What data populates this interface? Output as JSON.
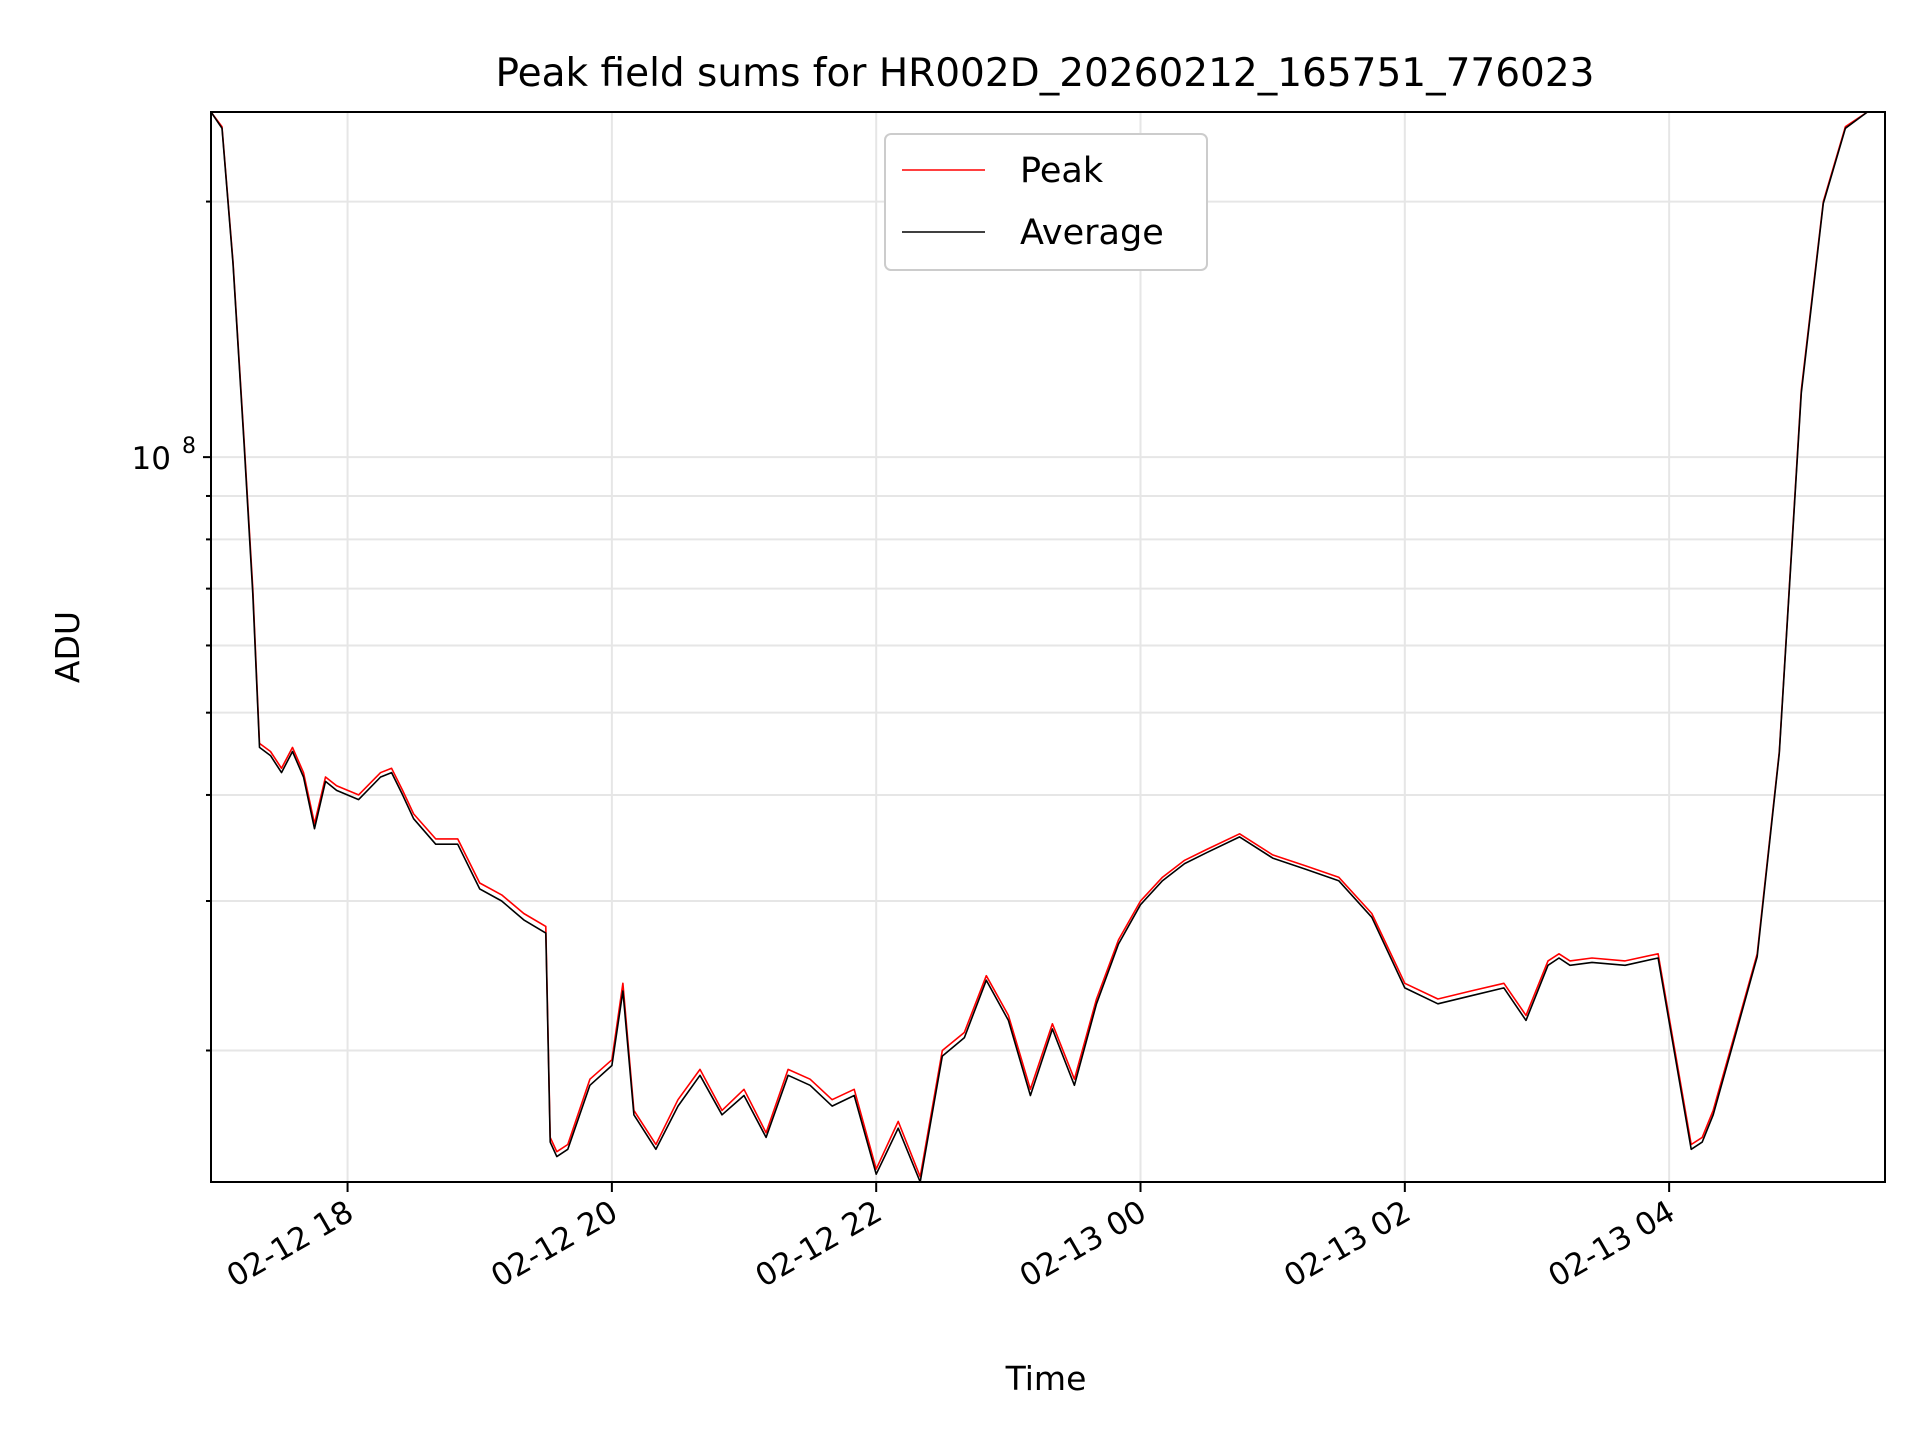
{
  "chart_data": {
    "type": "line",
    "title": "Peak field sums for HR002D_20260212_165751_776023",
    "xlabel": "Time",
    "ylabel": "ADU",
    "yscale": "log",
    "xlim": [
      "2026-02-12 16:58",
      "2026-02-13 05:38"
    ],
    "ylim": [
      14000000,
      255000000
    ],
    "x_ticks": [
      "02-12 18",
      "02-12 20",
      "02-12 22",
      "02-13 00",
      "02-13 02",
      "02-13 04"
    ],
    "y_ticks": [
      {
        "base": "10",
        "exp": "8"
      }
    ],
    "grid": true,
    "legend": {
      "placement": "top-center"
    },
    "colors": {
      "peak": "#ff0000",
      "average": "#000000",
      "grid": "#e6e6e6"
    },
    "x": [
      "2026-02-12 16:58",
      "2026-02-12 17:03",
      "2026-02-12 17:08",
      "2026-02-12 17:13",
      "2026-02-12 17:17",
      "2026-02-12 17:20",
      "2026-02-12 17:25",
      "2026-02-12 17:30",
      "2026-02-12 17:35",
      "2026-02-12 17:40",
      "2026-02-12 17:45",
      "2026-02-12 17:50",
      "2026-02-12 17:55",
      "2026-02-12 18:05",
      "2026-02-12 18:15",
      "2026-02-12 18:20",
      "2026-02-12 18:25",
      "2026-02-12 18:30",
      "2026-02-12 18:40",
      "2026-02-12 18:50",
      "2026-02-12 19:00",
      "2026-02-12 19:10",
      "2026-02-12 19:20",
      "2026-02-12 19:30",
      "2026-02-12 19:32",
      "2026-02-12 19:35",
      "2026-02-12 19:40",
      "2026-02-12 19:50",
      "2026-02-12 20:00",
      "2026-02-12 20:05",
      "2026-02-12 20:10",
      "2026-02-12 20:20",
      "2026-02-12 20:30",
      "2026-02-12 20:40",
      "2026-02-12 20:50",
      "2026-02-12 21:00",
      "2026-02-12 21:10",
      "2026-02-12 21:20",
      "2026-02-12 21:30",
      "2026-02-12 21:40",
      "2026-02-12 21:50",
      "2026-02-12 22:00",
      "2026-02-12 22:10",
      "2026-02-12 22:20",
      "2026-02-12 22:30",
      "2026-02-12 22:40",
      "2026-02-12 22:50",
      "2026-02-12 23:00",
      "2026-02-12 23:10",
      "2026-02-12 23:20",
      "2026-02-12 23:30",
      "2026-02-12 23:40",
      "2026-02-12 23:50",
      "2026-02-13 00:00",
      "2026-02-13 00:10",
      "2026-02-13 00:20",
      "2026-02-13 00:30",
      "2026-02-13 00:45",
      "2026-02-13 01:00",
      "2026-02-13 01:15",
      "2026-02-13 01:30",
      "2026-02-13 01:45",
      "2026-02-13 02:00",
      "2026-02-13 02:15",
      "2026-02-13 02:30",
      "2026-02-13 02:45",
      "2026-02-13 02:55",
      "2026-02-13 03:05",
      "2026-02-13 03:10",
      "2026-02-13 03:15",
      "2026-02-13 03:25",
      "2026-02-13 03:40",
      "2026-02-13 03:55",
      "2026-02-13 04:10",
      "2026-02-13 04:15",
      "2026-02-13 04:20",
      "2026-02-13 04:30",
      "2026-02-13 04:40",
      "2026-02-13 04:50",
      "2026-02-13 05:00",
      "2026-02-13 05:10",
      "2026-02-13 05:20",
      "2026-02-13 05:30",
      "2026-02-13 05:35"
    ],
    "series": [
      {
        "name": "Peak",
        "values": [
          255000000,
          245000000,
          170000000,
          105000000,
          70000000,
          46000000,
          45000000,
          43000000,
          45500000,
          42500000,
          37000000,
          42000000,
          41000000,
          40000000,
          42500000,
          43000000,
          40500000,
          38000000,
          35500000,
          35500000,
          31500000,
          30500000,
          29000000,
          28000000,
          15800000,
          15200000,
          15500000,
          18500000,
          19500000,
          24000000,
          17000000,
          15500000,
          17500000,
          19000000,
          17000000,
          18000000,
          16000000,
          19000000,
          18500000,
          17500000,
          18000000,
          14500000,
          16500000,
          14200000,
          20000000,
          21000000,
          24500000,
          22000000,
          18000000,
          21500000,
          18500000,
          23000000,
          27000000,
          30000000,
          32000000,
          33500000,
          34500000,
          36000000,
          34000000,
          33000000,
          32000000,
          29000000,
          24000000,
          23000000,
          23500000,
          24000000,
          22000000,
          25500000,
          26000000,
          25500000,
          25700000,
          25500000,
          26000000,
          15500000,
          15800000,
          17000000,
          21000000,
          26000000,
          45000000,
          120000000,
          200000000,
          245000000,
          255000000,
          255000000
        ]
      },
      {
        "name": "Average",
        "values": [
          255000000,
          244000000,
          169000000,
          104000000,
          69000000,
          45500000,
          44500000,
          42500000,
          45000000,
          42000000,
          36500000,
          41500000,
          40500000,
          39500000,
          42000000,
          42500000,
          40000000,
          37500000,
          35000000,
          35000000,
          31000000,
          30000000,
          28500000,
          27500000,
          15600000,
          15000000,
          15300000,
          18200000,
          19200000,
          23500000,
          16800000,
          15300000,
          17200000,
          18700000,
          16800000,
          17700000,
          15800000,
          18700000,
          18200000,
          17200000,
          17700000,
          14300000,
          16200000,
          14000000,
          19700000,
          20700000,
          24200000,
          21700000,
          17700000,
          21200000,
          18200000,
          22700000,
          26700000,
          29700000,
          31700000,
          33200000,
          34200000,
          35700000,
          33700000,
          32700000,
          31700000,
          28700000,
          23700000,
          22700000,
          23200000,
          23700000,
          21700000,
          25200000,
          25700000,
          25200000,
          25400000,
          25200000,
          25700000,
          15300000,
          15600000,
          16800000,
          20800000,
          25800000,
          44800000,
          119000000,
          199000000,
          244000000,
          255000000,
          255000000
        ]
      }
    ]
  }
}
